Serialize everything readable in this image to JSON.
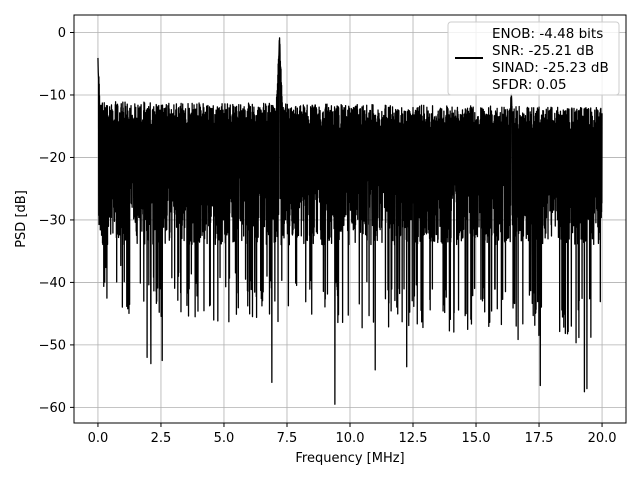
{
  "chart_data": {
    "type": "line",
    "xlabel": "Frequency [MHz]",
    "ylabel": "PSD [dB]",
    "xlim": [
      -0.95,
      20.95
    ],
    "ylim": [
      -62.5,
      2.8
    ],
    "x_ticks": [
      0.0,
      2.5,
      5.0,
      7.5,
      10.0,
      12.5,
      15.0,
      17.5,
      20.0
    ],
    "x_tick_labels": [
      "0.0",
      "2.5",
      "5.0",
      "7.5",
      "10.0",
      "12.5",
      "15.0",
      "17.5",
      "20.0"
    ],
    "y_ticks": [
      0,
      -10,
      -20,
      -30,
      -40,
      -50,
      -60
    ],
    "y_tick_labels": [
      "0",
      "−10",
      "−20",
      "−30",
      "−40",
      "−50",
      "−60"
    ],
    "grid": true,
    "line_color": "#000000",
    "legend_position": "top-right",
    "legend_lines": [
      "ENOB: -4.48 bits",
      "SNR: -25.21 dB",
      "SINAD: -25.23 dB",
      "SFDR: 0.05"
    ],
    "series": [
      {
        "x_range": [
          0,
          20
        ],
        "noise_floor_db": -22,
        "noise_upper_envelope_db": [
          -12,
          -13
        ],
        "noise_lower_envelope_db": [
          -45,
          -50
        ],
        "peaks": [
          {
            "x": 0.0,
            "y": -3.5
          },
          {
            "x": 7.2,
            "y": 0.0
          },
          {
            "x": 16.4,
            "y": -8.5
          }
        ],
        "notable_dips": [
          {
            "x": 1.95,
            "y": -52.0
          },
          {
            "x": 2.1,
            "y": -53.0
          },
          {
            "x": 2.55,
            "y": -52.5
          },
          {
            "x": 6.9,
            "y": -56.0
          },
          {
            "x": 9.4,
            "y": -59.5
          },
          {
            "x": 11.0,
            "y": -54.0
          },
          {
            "x": 12.25,
            "y": -53.5
          },
          {
            "x": 17.55,
            "y": -56.5
          },
          {
            "x": 19.3,
            "y": -57.5
          },
          {
            "x": 19.4,
            "y": -57.0
          }
        ]
      }
    ]
  }
}
